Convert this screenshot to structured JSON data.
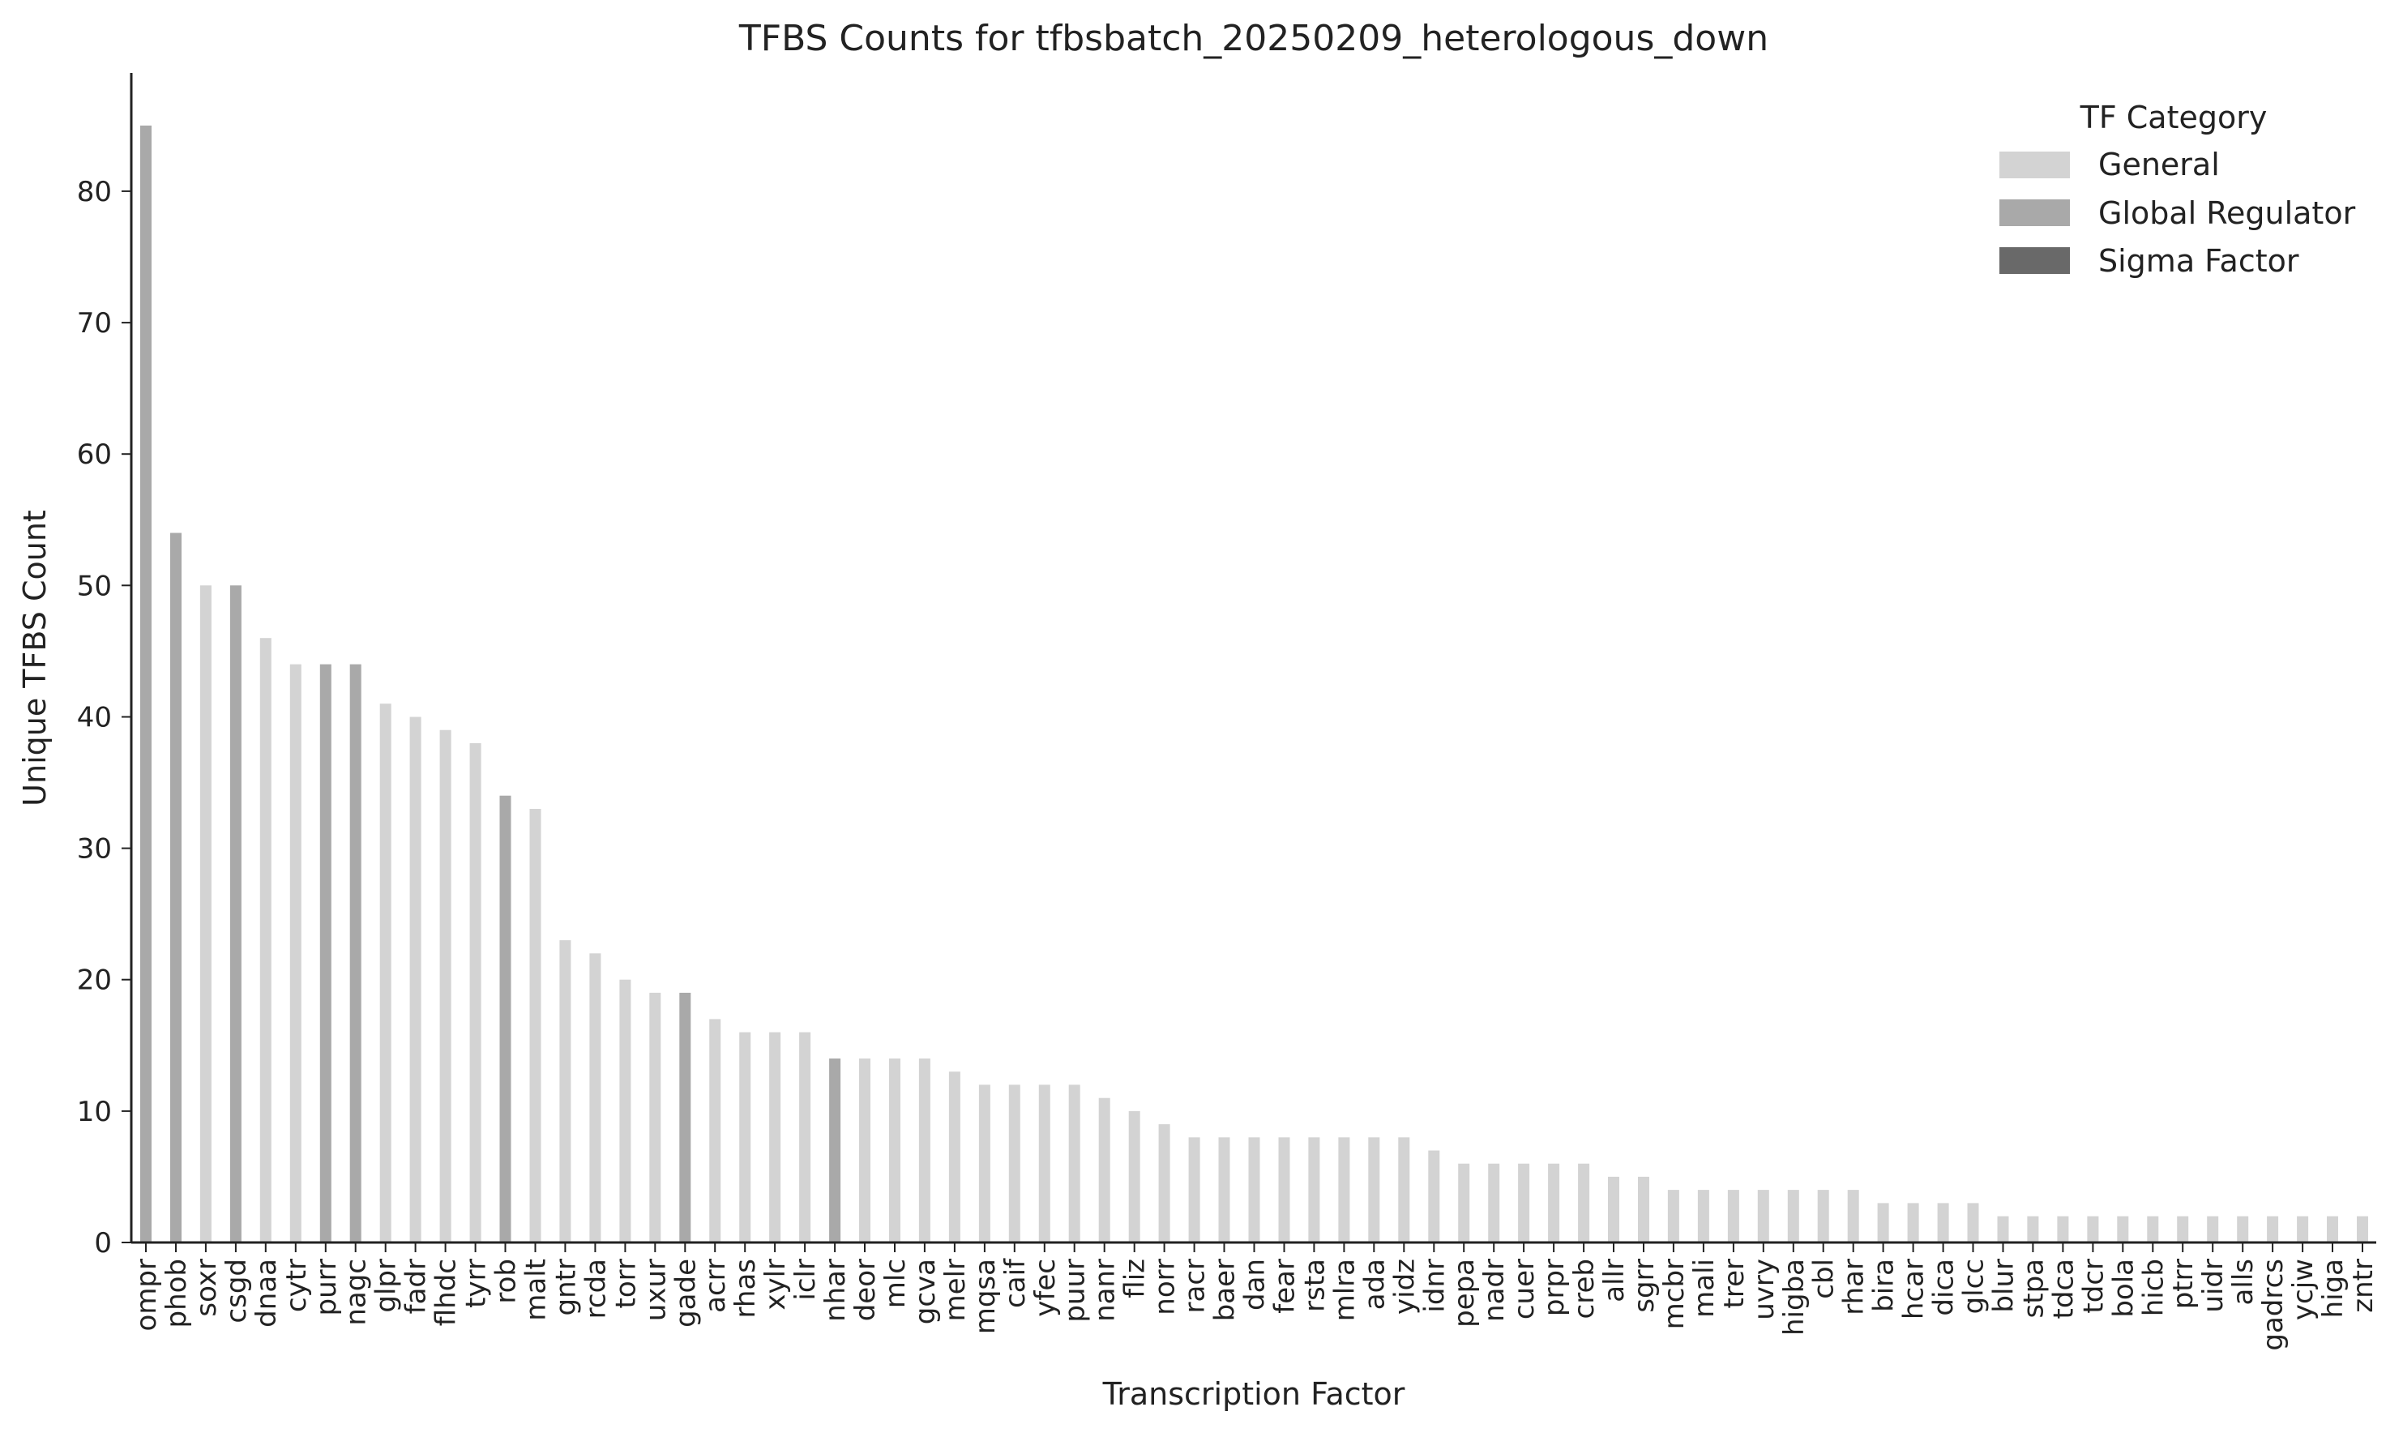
{
  "chart_data": {
    "type": "bar",
    "title": "TFBS Counts for tfbsbatch_20250209_heterologous_down",
    "xlabel": "Transcription Factor",
    "ylabel": "Unique TFBS Count",
    "ylim": [
      0,
      89
    ],
    "yticks": [
      0,
      10,
      20,
      30,
      40,
      50,
      60,
      70,
      80
    ],
    "grid": false,
    "legend": {
      "title": "TF Category",
      "placement": "top-right",
      "entries": [
        {
          "label": "General",
          "color": "#d3d3d3"
        },
        {
          "label": "Global Regulator",
          "color": "#a9a9a9"
        },
        {
          "label": "Sigma Factor",
          "color": "#696969"
        }
      ]
    },
    "categories": [
      "ompr",
      "phob",
      "soxr",
      "csgd",
      "dnaa",
      "cytr",
      "purr",
      "nagc",
      "glpr",
      "fadr",
      "flhdc",
      "tyrr",
      "rob",
      "malt",
      "gntr",
      "rcda",
      "torr",
      "uxur",
      "gade",
      "acrr",
      "rhas",
      "xylr",
      "iclr",
      "nhar",
      "deor",
      "mlc",
      "gcva",
      "melr",
      "mqsa",
      "caif",
      "yfec",
      "puur",
      "nanr",
      "fliz",
      "norr",
      "racr",
      "baer",
      "dan",
      "fear",
      "rsta",
      "mlra",
      "ada",
      "yidz",
      "idnr",
      "pepa",
      "nadr",
      "cuer",
      "prpr",
      "creb",
      "allr",
      "sgrr",
      "mcbr",
      "mali",
      "trer",
      "uvry",
      "higba",
      "cbl",
      "rhar",
      "bira",
      "hcar",
      "dica",
      "glcc",
      "blur",
      "stpa",
      "tdca",
      "tdcr",
      "bola",
      "hicb",
      "ptrr",
      "uidr",
      "alls",
      "gadrcs",
      "ycjw",
      "higa",
      "zntr"
    ],
    "values": [
      85,
      54,
      50,
      50,
      46,
      44,
      44,
      44,
      41,
      40,
      39,
      38,
      34,
      33,
      23,
      22,
      20,
      19,
      19,
      17,
      16,
      16,
      16,
      14,
      14,
      14,
      14,
      13,
      12,
      12,
      12,
      12,
      11,
      10,
      9,
      8,
      8,
      8,
      8,
      8,
      8,
      8,
      8,
      7,
      6,
      6,
      6,
      6,
      6,
      5,
      5,
      4,
      4,
      4,
      4,
      4,
      4,
      4,
      3,
      3,
      3,
      3,
      2,
      2,
      2,
      2,
      2,
      2,
      2,
      2,
      2,
      2,
      2,
      2,
      2
    ],
    "bar_categories": [
      "Global Regulator",
      "Global Regulator",
      "General",
      "Global Regulator",
      "General",
      "General",
      "Global Regulator",
      "Global Regulator",
      "General",
      "General",
      "General",
      "General",
      "Global Regulator",
      "General",
      "General",
      "General",
      "General",
      "General",
      "Global Regulator",
      "General",
      "General",
      "General",
      "General",
      "Global Regulator",
      "General",
      "General",
      "General",
      "General",
      "General",
      "General",
      "General",
      "General",
      "General",
      "General",
      "General",
      "General",
      "General",
      "General",
      "General",
      "General",
      "General",
      "General",
      "General",
      "General",
      "General",
      "General",
      "General",
      "General",
      "General",
      "General",
      "General",
      "General",
      "General",
      "General",
      "General",
      "General",
      "General",
      "General",
      "General",
      "General",
      "General",
      "General",
      "General",
      "General",
      "General",
      "General",
      "General",
      "General",
      "General",
      "General",
      "General",
      "General",
      "General",
      "General",
      "General"
    ]
  }
}
